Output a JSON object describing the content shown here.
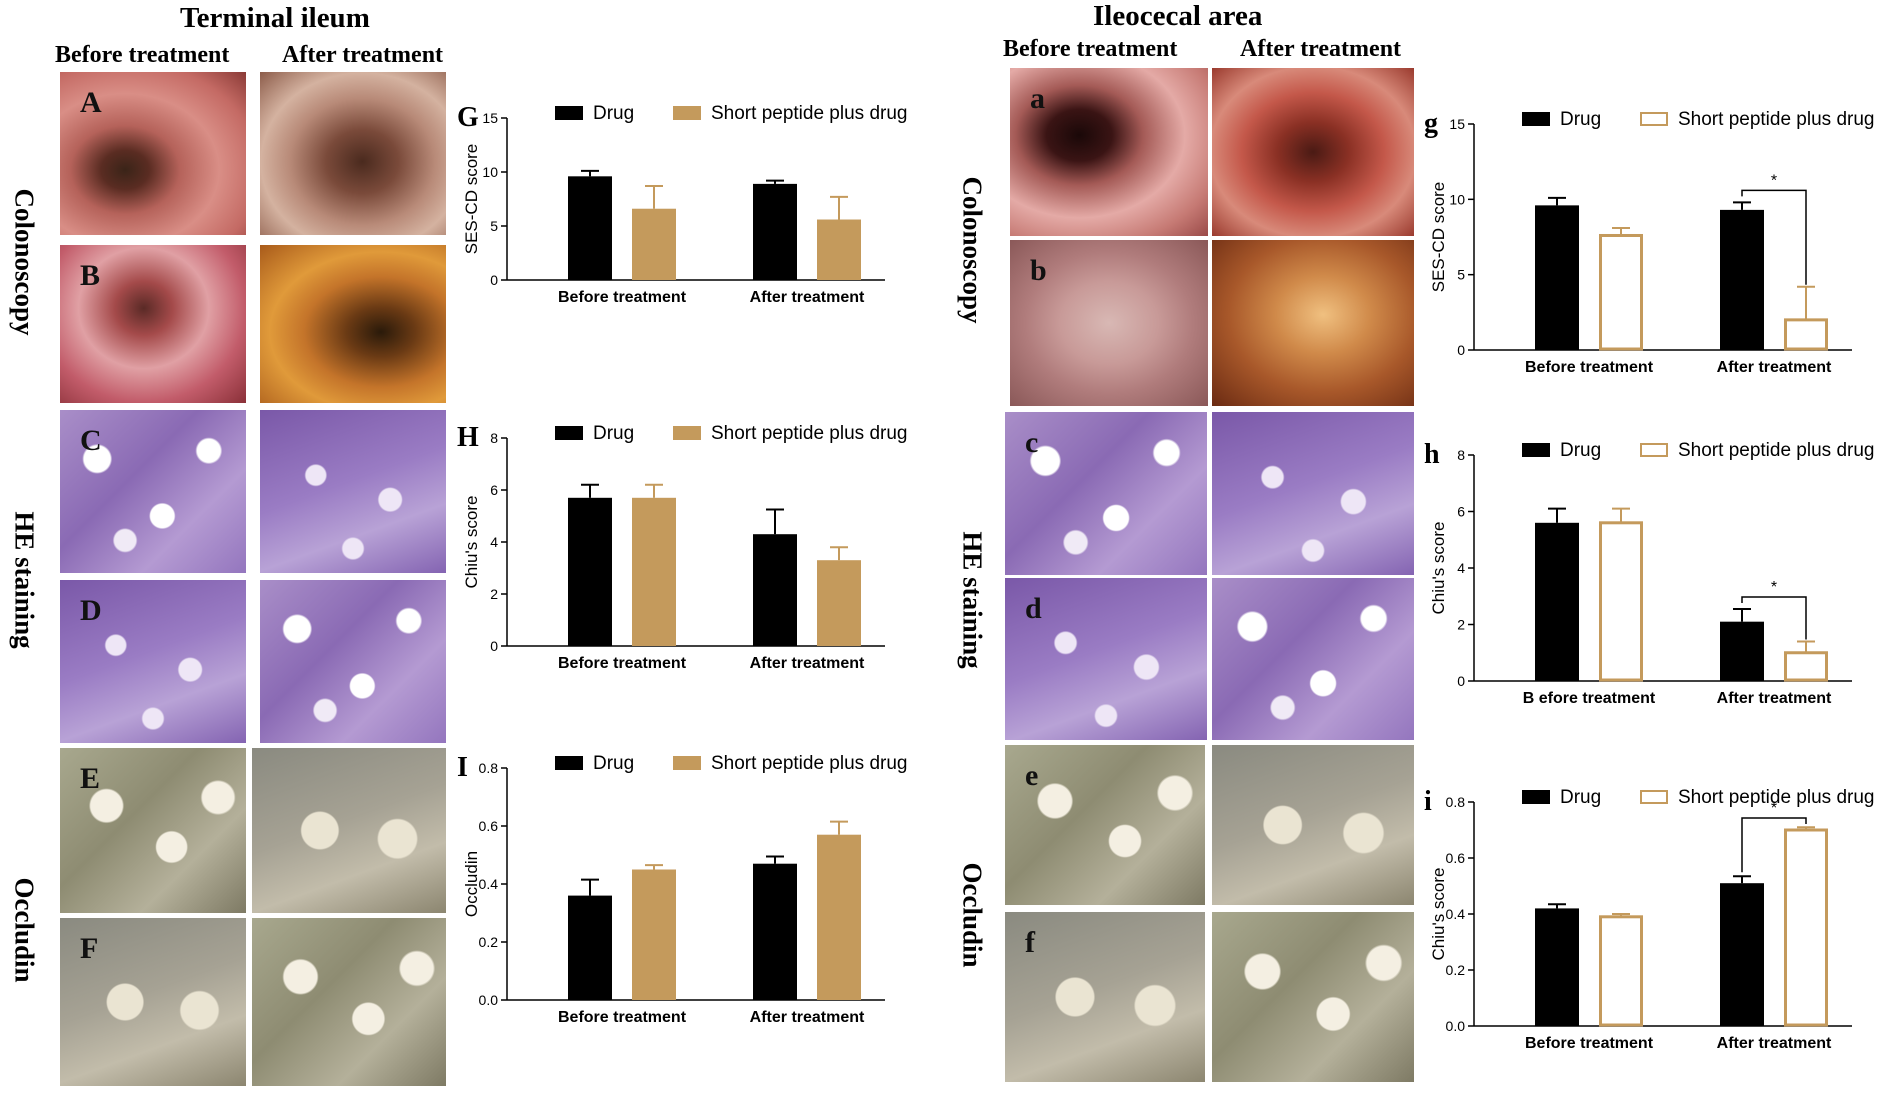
{
  "titles": {
    "left": "Terminal ileum",
    "right": "Ileocecal area"
  },
  "columns": {
    "left_before": "Before treatment",
    "left_after": "After treatment",
    "right_before": "Before treatment",
    "right_after": "After treatment"
  },
  "row_labels": {
    "colonoscopy_left": "Colonoscopy",
    "he_left": "HE staining",
    "occludin_left": "Occludin",
    "colonoscopy_right": "Colonoscopy",
    "he_right": "HE staining",
    "occludin_right": "Occludin"
  },
  "image_letters": {
    "A": "A",
    "B": "B",
    "C": "C",
    "D": "D",
    "E": "E",
    "F": "F",
    "a": "a",
    "b": "b",
    "c": "c",
    "d": "d",
    "e": "e",
    "f": "f"
  },
  "colors": {
    "drug": "#000000",
    "peptide": "#C49A5C"
  },
  "chart_data": [
    {
      "panel": "G",
      "type": "bar",
      "ylabel": "SES-CD score",
      "ylim": [
        0,
        15
      ],
      "yticks": [
        0,
        5,
        10,
        15
      ],
      "categories": [
        "Before treatment",
        "After treatment"
      ],
      "legend": [
        "Drug",
        "Short peptide plus drug"
      ],
      "peptide_style": "filled",
      "series": [
        {
          "name": "Drug",
          "values": [
            9.6,
            8.9
          ],
          "errors": [
            0.5,
            0.3
          ]
        },
        {
          "name": "Short peptide plus drug",
          "values": [
            6.6,
            5.6
          ],
          "errors": [
            2.1,
            2.1
          ]
        }
      ],
      "significance": []
    },
    {
      "panel": "H",
      "type": "bar",
      "ylabel": "Chiu's score",
      "ylim": [
        0,
        8
      ],
      "yticks": [
        0,
        2,
        4,
        6,
        8
      ],
      "categories": [
        "Before treatment",
        "After treatment"
      ],
      "legend": [
        "Drug",
        "Short peptide plus drug"
      ],
      "peptide_style": "filled",
      "series": [
        {
          "name": "Drug",
          "values": [
            5.7,
            4.3
          ],
          "errors": [
            0.5,
            0.95
          ]
        },
        {
          "name": "Short peptide plus drug",
          "values": [
            5.7,
            3.3
          ],
          "errors": [
            0.5,
            0.5
          ]
        }
      ],
      "significance": []
    },
    {
      "panel": "I",
      "type": "bar",
      "ylabel": "Occludin",
      "ylim": [
        0,
        0.8
      ],
      "yticks": [
        "0.0",
        "0.2",
        "0.4",
        "0.6",
        "0.8"
      ],
      "categories": [
        "Before treatment",
        "After treatment"
      ],
      "legend": [
        "Drug",
        "Short peptide plus drug"
      ],
      "peptide_style": "filled",
      "series": [
        {
          "name": "Drug",
          "values": [
            0.36,
            0.47
          ],
          "errors": [
            0.055,
            0.025
          ]
        },
        {
          "name": "Short peptide plus drug",
          "values": [
            0.45,
            0.57
          ],
          "errors": [
            0.015,
            0.045
          ]
        }
      ],
      "significance": []
    },
    {
      "panel": "g",
      "type": "bar",
      "ylabel": "SES-CD score",
      "ylim": [
        0,
        15
      ],
      "yticks": [
        0,
        5,
        10,
        15
      ],
      "categories": [
        "Before treatment",
        "After treatment"
      ],
      "legend": [
        "Drug",
        "Short peptide plus drug"
      ],
      "peptide_style": "outline",
      "series": [
        {
          "name": "Drug",
          "values": [
            9.6,
            9.3
          ],
          "errors": [
            0.5,
            0.5
          ]
        },
        {
          "name": "Short peptide plus drug",
          "values": [
            7.6,
            2.0
          ],
          "errors": [
            0.5,
            2.2
          ]
        }
      ],
      "significance": [
        {
          "category": 1,
          "label": "*"
        }
      ]
    },
    {
      "panel": "h",
      "type": "bar",
      "ylabel": "Chiu's score",
      "ylim": [
        0,
        8
      ],
      "yticks": [
        0,
        2,
        4,
        6,
        8
      ],
      "categories": [
        "B efore treatment",
        "After treatment"
      ],
      "legend": [
        "Drug",
        "Short peptide plus drug"
      ],
      "peptide_style": "outline",
      "series": [
        {
          "name": "Drug",
          "values": [
            5.6,
            2.1
          ],
          "errors": [
            0.5,
            0.45
          ]
        },
        {
          "name": "Short peptide plus drug",
          "values": [
            5.6,
            1.0
          ],
          "errors": [
            0.5,
            0.4
          ]
        }
      ],
      "significance": [
        {
          "category": 1,
          "label": "*"
        }
      ]
    },
    {
      "panel": "i",
      "type": "bar",
      "ylabel": "Chiu's score",
      "ylim": [
        0,
        0.8
      ],
      "yticks": [
        "0.0",
        "0.2",
        "0.4",
        "0.6",
        "0.8"
      ],
      "categories": [
        "Before treatment",
        "After treatment"
      ],
      "legend": [
        "Drug",
        "Short peptide plus drug"
      ],
      "peptide_style": "outline",
      "series": [
        {
          "name": "Drug",
          "values": [
            0.42,
            0.51
          ],
          "errors": [
            0.015,
            0.025
          ]
        },
        {
          "name": "Short peptide plus drug",
          "values": [
            0.39,
            0.7
          ],
          "errors": [
            0.01,
            0.01
          ]
        }
      ],
      "significance": [
        {
          "category": 1,
          "label": "*"
        }
      ]
    }
  ]
}
